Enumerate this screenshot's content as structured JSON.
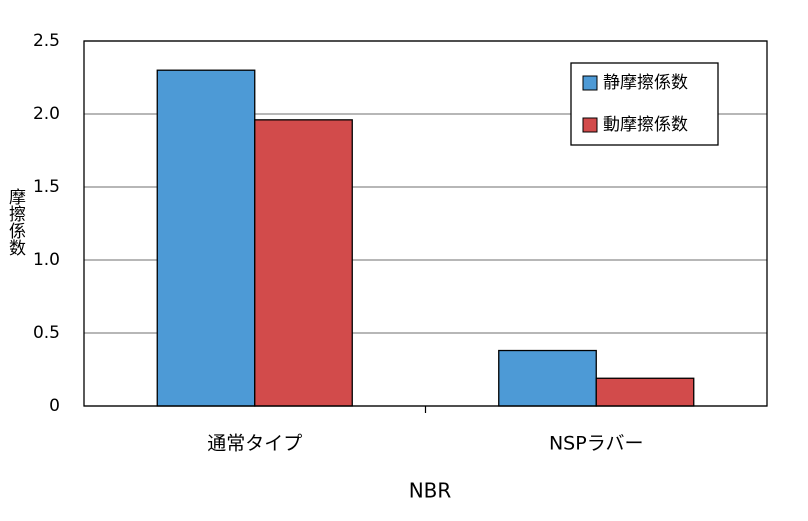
{
  "chart_data": {
    "type": "bar",
    "y_label": "摩擦係数",
    "x_label": "NBR",
    "categories": [
      "通常タイプ",
      "NSPラバー"
    ],
    "series": [
      {
        "name": "静摩擦係数",
        "color": "#4d9ad6",
        "values": [
          2.3,
          0.38
        ]
      },
      {
        "name": "動摩擦係数",
        "color": "#d24b4b",
        "values": [
          1.96,
          0.19
        ]
      }
    ],
    "ylim": [
      0,
      2.5
    ],
    "yticks": [
      0,
      0.5,
      {
        "value": 1,
        "label": "1.0"
      },
      1.5,
      {
        "value": 2,
        "label": "2.0"
      },
      2.5
    ],
    "grid": true,
    "legend": "upper-right"
  }
}
